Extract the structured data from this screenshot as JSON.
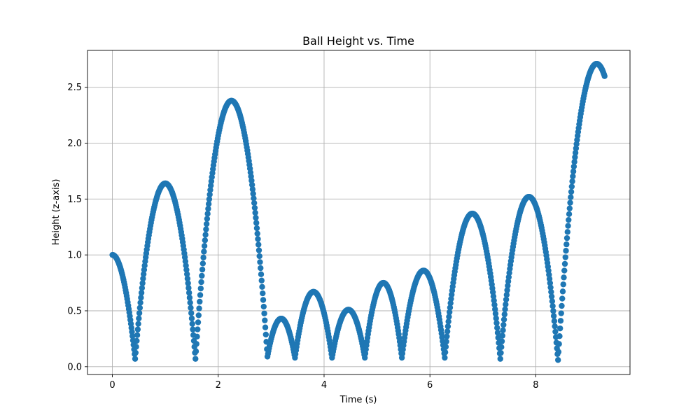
{
  "chart_data": {
    "type": "scatter",
    "title": "Ball Height vs. Time",
    "xlabel": "Time (s)",
    "ylabel": "Height (z-axis)",
    "xlim": [
      -0.47,
      9.78
    ],
    "ylim": [
      -0.07,
      2.83
    ],
    "xticks": [
      0,
      2,
      4,
      6,
      8
    ],
    "xtick_labels": [
      "0",
      "2",
      "4",
      "6",
      "8"
    ],
    "yticks": [
      0.0,
      0.5,
      1.0,
      1.5,
      2.0,
      2.5
    ],
    "ytick_labels": [
      "0.0",
      "0.5",
      "1.0",
      "1.5",
      "2.0",
      "2.5"
    ],
    "grid": true,
    "marker_color": "#1f77b4",
    "series": [
      {
        "segments": [
          {
            "t_start": 0.0,
            "t_end": 0.43,
            "y_start": 1.0,
            "y_end": 0.07,
            "t_peak": 0.0,
            "y_peak": 1.0
          },
          {
            "t_start": 0.43,
            "t_end": 1.57,
            "y_start": 0.07,
            "y_end": 0.07,
            "t_peak": 1.0,
            "y_peak": 1.64
          },
          {
            "t_start": 1.57,
            "t_end": 2.93,
            "y_start": 0.07,
            "y_end": 0.09,
            "t_peak": 2.25,
            "y_peak": 2.38
          },
          {
            "t_start": 2.93,
            "t_end": 3.45,
            "y_start": 0.09,
            "y_end": 0.08,
            "t_peak": 3.19,
            "y_peak": 0.43
          },
          {
            "t_start": 3.45,
            "t_end": 4.15,
            "y_start": 0.08,
            "y_end": 0.08,
            "t_peak": 3.8,
            "y_peak": 0.67
          },
          {
            "t_start": 4.15,
            "t_end": 4.77,
            "y_start": 0.08,
            "y_end": 0.08,
            "t_peak": 4.46,
            "y_peak": 0.51
          },
          {
            "t_start": 4.77,
            "t_end": 5.47,
            "y_start": 0.08,
            "y_end": 0.08,
            "t_peak": 5.12,
            "y_peak": 0.75
          },
          {
            "t_start": 5.47,
            "t_end": 6.28,
            "y_start": 0.08,
            "y_end": 0.08,
            "t_peak": 5.88,
            "y_peak": 0.86
          },
          {
            "t_start": 6.28,
            "t_end": 7.33,
            "y_start": 0.08,
            "y_end": 0.07,
            "t_peak": 6.8,
            "y_peak": 1.37
          },
          {
            "t_start": 7.33,
            "t_end": 8.42,
            "y_start": 0.07,
            "y_end": 0.06,
            "t_peak": 7.87,
            "y_peak": 1.52
          },
          {
            "t_start": 8.42,
            "t_end": 9.3,
            "y_start": 0.06,
            "y_end": 2.6,
            "t_peak": 9.15,
            "y_peak": 2.71
          }
        ]
      }
    ]
  }
}
